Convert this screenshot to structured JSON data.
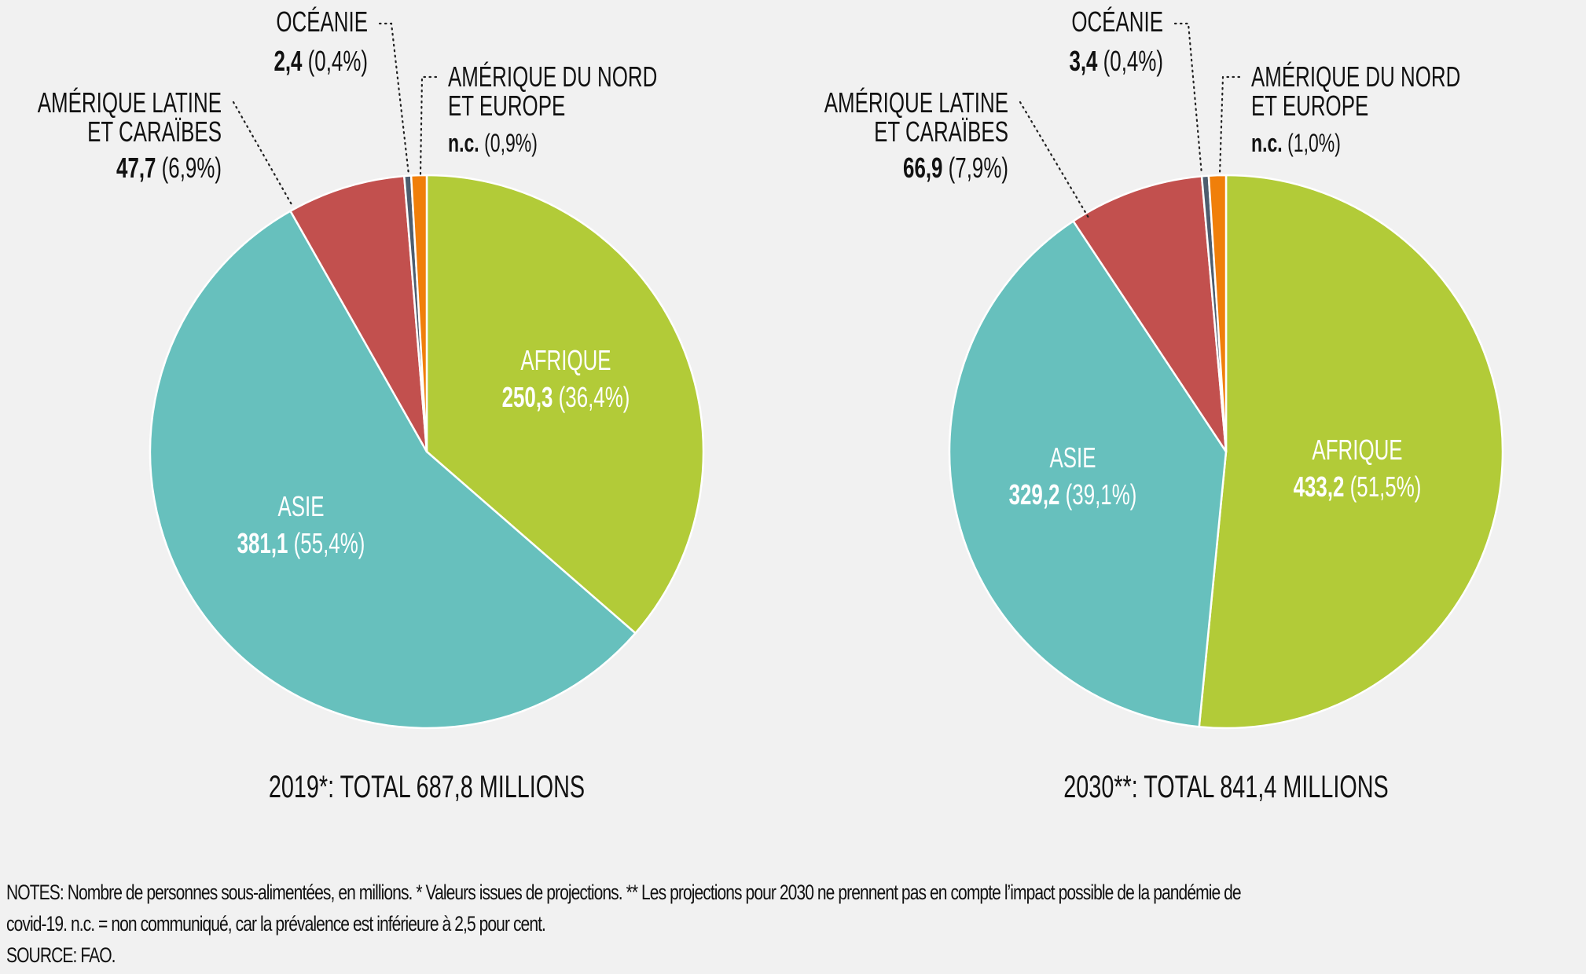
{
  "chart_data": [
    {
      "type": "pie",
      "title": "2019*: TOTAL 687,8 MILLIONS",
      "total": 687.8,
      "start_angle": "12 o'clock",
      "direction": "clockwise",
      "slices": [
        {
          "key": "afrique",
          "label": "AFRIQUE",
          "value": 250.3,
          "value_text": "250,3",
          "percent": 36.4,
          "percent_text": "(36,4%)",
          "color": "#b2cb38",
          "label_position": "inside"
        },
        {
          "key": "asie",
          "label": "ASIE",
          "value": 381.1,
          "value_text": "381,1",
          "percent": 55.4,
          "percent_text": "(55,4%)",
          "color": "#67c0bd",
          "label_position": "inside"
        },
        {
          "key": "amerique-latine",
          "label_lines": [
            "AMÉRIQUE LATINE",
            "ET CARAÏBES"
          ],
          "value": 47.7,
          "value_text": "47,7",
          "percent": 6.9,
          "percent_text": "(6,9%)",
          "color": "#c2504e",
          "label_position": "outside-left"
        },
        {
          "key": "oceanie",
          "label_lines": [
            "OCÉANIE"
          ],
          "value": 2.4,
          "value_text": "2,4",
          "percent": 0.4,
          "percent_text": "(0,4%)",
          "color": "#4d5d6e",
          "label_position": "outside-top"
        },
        {
          "key": "amerique-nord",
          "label_lines": [
            "AMÉRIQUE DU NORD",
            "ET EUROPE"
          ],
          "value": null,
          "value_text": "n.c.",
          "percent": 0.9,
          "percent_text": "(0,9%)",
          "color": "#f07f0a",
          "label_position": "outside-right"
        }
      ]
    },
    {
      "type": "pie",
      "title": "2030**: TOTAL 841,4 MILLIONS",
      "total": 841.4,
      "start_angle": "12 o'clock",
      "direction": "clockwise",
      "slices": [
        {
          "key": "afrique",
          "label": "AFRIQUE",
          "value": 433.2,
          "value_text": "433,2",
          "percent": 51.5,
          "percent_text": "(51,5%)",
          "color": "#b2cb38",
          "label_position": "inside"
        },
        {
          "key": "asie",
          "label": "ASIE",
          "value": 329.2,
          "value_text": "329,2",
          "percent": 39.1,
          "percent_text": "(39,1%)",
          "color": "#67c0bd",
          "label_position": "inside"
        },
        {
          "key": "amerique-latine",
          "label_lines": [
            "AMÉRIQUE LATINE",
            "ET CARAÏBES"
          ],
          "value": 66.9,
          "value_text": "66,9",
          "percent": 7.9,
          "percent_text": "(7,9%)",
          "color": "#c2504e",
          "label_position": "outside-left"
        },
        {
          "key": "oceanie",
          "label_lines": [
            "OCÉANIE"
          ],
          "value": 3.4,
          "value_text": "3,4",
          "percent": 0.4,
          "percent_text": "(0,4%)",
          "color": "#4d5d6e",
          "label_position": "outside-top"
        },
        {
          "key": "amerique-nord",
          "label_lines": [
            "AMÉRIQUE DU NORD",
            "ET EUROPE"
          ],
          "value": null,
          "value_text": "n.c.",
          "percent": 1.0,
          "percent_text": "(1,0%)",
          "color": "#f07f0a",
          "label_position": "outside-right"
        }
      ]
    }
  ],
  "footer": {
    "notes_line1": "NOTES: Nombre de personnes sous-alimentées, en millions. * Valeurs issues de projections. ** Les projections pour 2030 ne prennent pas en compte l’impact possible de la pandémie de",
    "notes_line2": "covid-19. n.c. = non communiqué, car la prévalence est inférieure à 2,5 pour cent.",
    "source": "SOURCE: FAO."
  },
  "colors": {
    "background": "#f1f1f1",
    "text": "#111111",
    "inside_text": "#ffffff",
    "slice_border": "#ffffff",
    "leader_line": "#222222"
  }
}
